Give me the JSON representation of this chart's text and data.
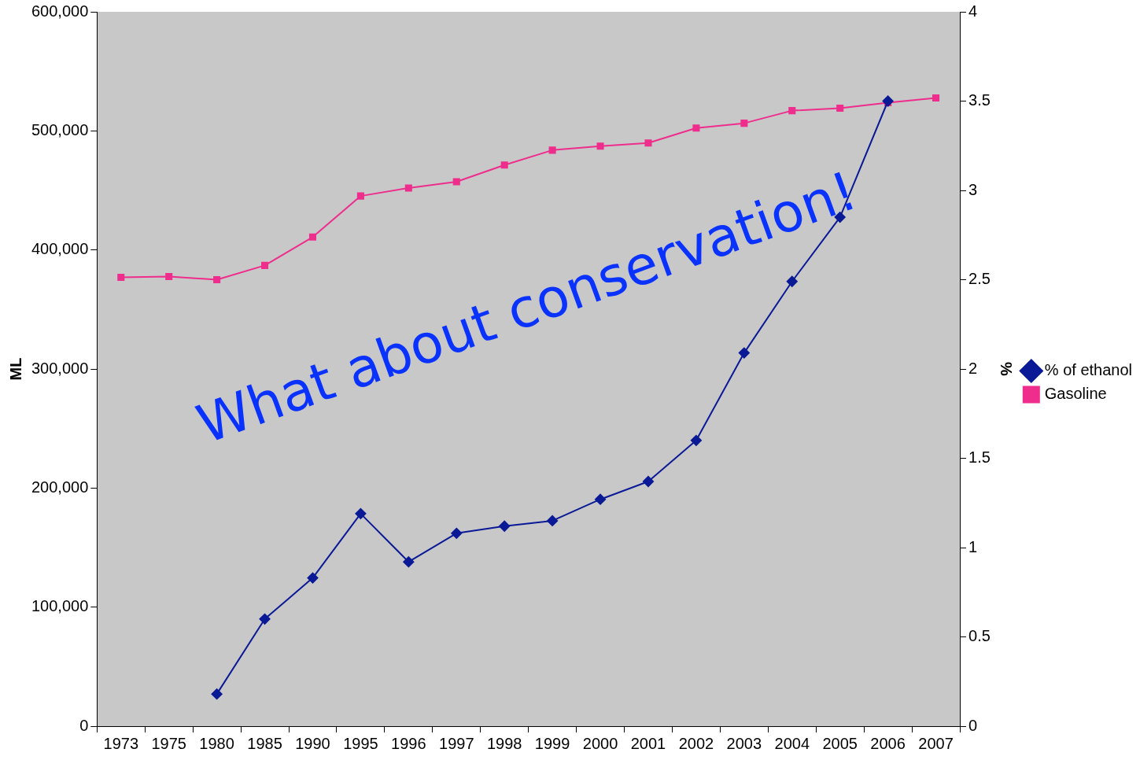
{
  "chart_data": {
    "type": "line",
    "categories": [
      "1973",
      "1975",
      "1980",
      "1985",
      "1990",
      "1995",
      "1996",
      "1997",
      "1998",
      "1999",
      "2000",
      "2001",
      "2002",
      "2003",
      "2004",
      "2005",
      "2006",
      "2007"
    ],
    "series": [
      {
        "name": "Gasoline",
        "color": "#ee2d8c",
        "marker": "square",
        "values": [
          377000,
          377700,
          375000,
          387000,
          410800,
          445300,
          452000,
          457300,
          471300,
          483800,
          487200,
          489800,
          502400,
          506400,
          517000,
          519000,
          523700,
          527600
        ]
      },
      {
        "name": "% of ethanol",
        "color": "#0a1a96",
        "marker": "diamond",
        "axis": "y2",
        "values": [
          null,
          null,
          0.18,
          0.6,
          0.83,
          1.19,
          0.92,
          1.08,
          1.12,
          1.15,
          1.27,
          1.37,
          1.6,
          2.09,
          2.49,
          2.85,
          3.5,
          null
        ]
      }
    ],
    "ylabel": "ML",
    "y2label": "%",
    "ylim": [
      0,
      600000
    ],
    "yticks": [
      {
        "value": 0,
        "label": "0"
      },
      {
        "value": 100000,
        "label": "100,000"
      },
      {
        "value": 200000,
        "label": "200,000"
      },
      {
        "value": 300000,
        "label": "300,000"
      },
      {
        "value": 400000,
        "label": "400,000"
      },
      {
        "value": 500000,
        "label": "500,000"
      },
      {
        "value": 600000,
        "label": "600,000"
      }
    ],
    "y2lim": [
      0,
      4
    ],
    "y2ticks": [
      0,
      0.5,
      1,
      1.5,
      2,
      2.5,
      3,
      3.5,
      4
    ],
    "grid": false,
    "legend": "right",
    "annotations": [
      "What about conservation!"
    ]
  }
}
